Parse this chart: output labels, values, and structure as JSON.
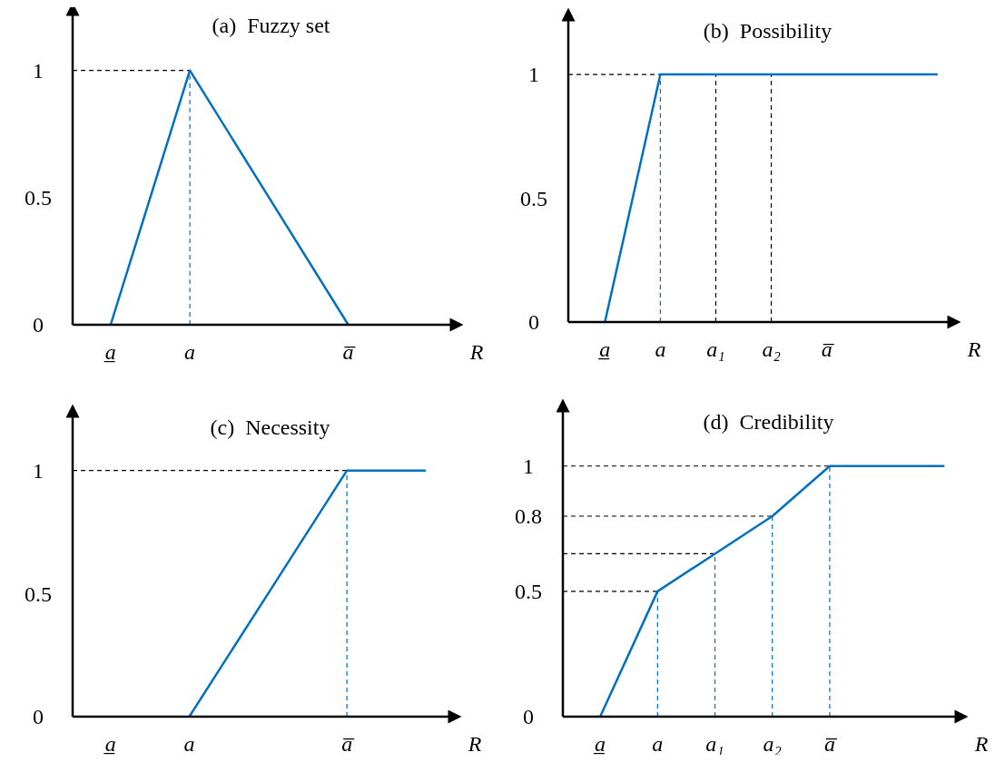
{
  "chart_data": [
    {
      "type": "line",
      "title": "(a)  Fuzzy set",
      "xlabel": "R",
      "categories": [
        "a̲",
        "a",
        null,
        "a̅"
      ],
      "ylim": [
        0,
        1.22
      ],
      "yticks": [
        0,
        0.5,
        1
      ],
      "series": [
        {
          "color": "#0070c0",
          "values": [
            0,
            1,
            0.5,
            0
          ]
        }
      ],
      "ref_lines": [
        {
          "axis": "x",
          "value": "a",
          "color": "#0070c0",
          "line_style": "dashed"
        },
        {
          "axis": "y",
          "value": 1,
          "color": "#000000",
          "line_style": "dashed"
        }
      ]
    },
    {
      "type": "line",
      "title": "(b)  Possibility",
      "xlabel": "R",
      "categories": [
        "a̲",
        "a",
        "a₁",
        "a₂",
        "a̅",
        null,
        null
      ],
      "ylim": [
        0,
        1.22
      ],
      "yticks": [
        0,
        0.5,
        1
      ],
      "series": [
        {
          "color": "#0070c0",
          "values": [
            0,
            1,
            1,
            1,
            1,
            1,
            1
          ]
        }
      ],
      "ref_lines": [
        {
          "axis": "x",
          "value": "a",
          "color": "#0070c0",
          "line_style": "dashed"
        },
        {
          "axis": "x",
          "value": "a₁",
          "color": "#000000",
          "line_style": "dashed"
        },
        {
          "axis": "x",
          "value": "a₂",
          "color": "#000000",
          "line_style": "dashed"
        },
        {
          "axis": "y",
          "value": 1,
          "color": "#000000",
          "line_style": "dashed"
        }
      ]
    },
    {
      "type": "line",
      "title": "(c)  Necessity",
      "xlabel": "R",
      "categories": [
        "a̲",
        "a",
        null,
        "a̅",
        null
      ],
      "ylim": [
        0,
        1.22
      ],
      "yticks": [
        0,
        0.5,
        1
      ],
      "series": [
        {
          "color": "#0070c0",
          "values": [
            null,
            0,
            0.5,
            1,
            1
          ]
        }
      ],
      "ref_lines": [
        {
          "axis": "x",
          "value": "a̅",
          "color": "#0070c0",
          "line_style": "dashed"
        },
        {
          "axis": "y",
          "value": 1,
          "color": "#000000",
          "line_style": "dashed"
        }
      ]
    },
    {
      "type": "line",
      "title": "(d)  Credibility",
      "xlabel": "R",
      "categories": [
        "a̲",
        "a",
        "a₁",
        "a₂",
        "a̅",
        null,
        null
      ],
      "ylim": [
        0,
        1.22
      ],
      "yticks": [
        0,
        0.5,
        0.8,
        1
      ],
      "series": [
        {
          "color": "#0070c0",
          "values": [
            0,
            0.5,
            0.65,
            0.8,
            1,
            1,
            1
          ]
        }
      ],
      "ref_lines": [
        {
          "axis": "x",
          "value": "a",
          "color": "#0070c0",
          "line_style": "dashed"
        },
        {
          "axis": "x",
          "value": "a₁",
          "color": "#0070c0",
          "line_style": "dashed"
        },
        {
          "axis": "x",
          "value": "a₂",
          "color": "#0070c0",
          "line_style": "dashed"
        },
        {
          "axis": "x",
          "value": "a̅",
          "color": "#0070c0",
          "line_style": "dashed"
        },
        {
          "axis": "y",
          "value": 0.5,
          "color": "#000000",
          "line_style": "dashed"
        },
        {
          "axis": "y",
          "value": 0.65,
          "color": "#000000",
          "line_style": "dashed"
        },
        {
          "axis": "y",
          "value": 0.8,
          "color": "#000000",
          "line_style": "dashed"
        },
        {
          "axis": "y",
          "value": 1,
          "color": "#000000",
          "line_style": "dashed"
        }
      ]
    }
  ]
}
